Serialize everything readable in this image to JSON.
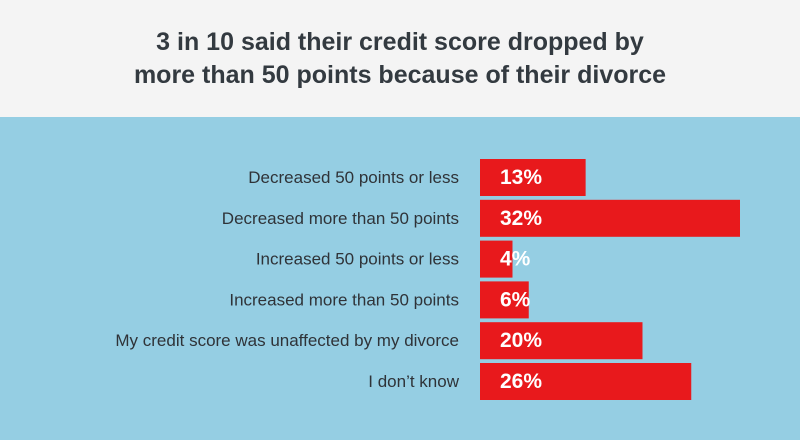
{
  "chart_data": {
    "type": "bar",
    "orientation": "horizontal",
    "title_lines": [
      "3 in 10 said their credit score dropped by",
      "more than 50 points because of their divorce"
    ],
    "categories": [
      "Decreased 50 points or less",
      "Decreased more than 50 points",
      "Increased 50 points or less",
      "Increased more than 50 points",
      "My credit score was unaffected by my divorce",
      "I don’t know"
    ],
    "values": [
      13,
      32,
      4,
      6,
      20,
      26
    ],
    "value_labels": [
      "13%",
      "32%",
      "4%",
      "6%",
      "20%",
      "26%"
    ],
    "unit": "%",
    "bar_color": "#e8191c",
    "background_color": "#95cee3",
    "header_color": "#f4f4f4",
    "grid": false,
    "legend": "none"
  }
}
